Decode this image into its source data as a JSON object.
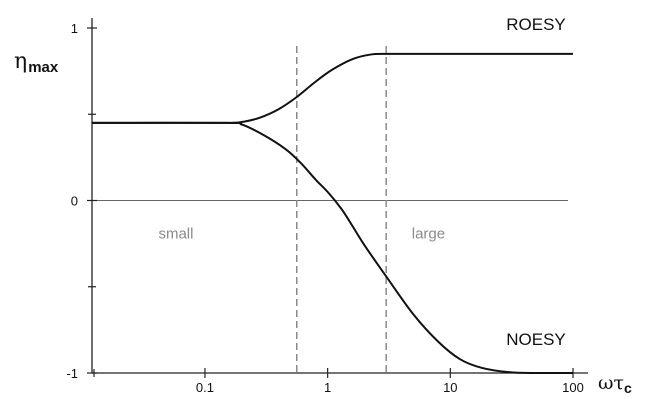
{
  "chart_data": {
    "type": "line",
    "xscale": "log",
    "xlim": [
      0.012,
      100
    ],
    "ylim": [
      -1,
      1
    ],
    "x_ticks": [
      {
        "value": 0.1,
        "label": "0.1"
      },
      {
        "value": 1,
        "label": "1"
      },
      {
        "value": 10,
        "label": "10"
      },
      {
        "value": 100,
        "label": "100"
      }
    ],
    "x_minor_ticks": [
      0.01
    ],
    "y_ticks": [
      {
        "value": 1,
        "label": "1"
      },
      {
        "value": 0,
        "label": "0"
      },
      {
        "value": -1,
        "label": "-1"
      }
    ],
    "y_minor_ticks": [
      0.5,
      -0.5
    ],
    "ylabel": {
      "main": "η",
      "sub": "max"
    },
    "xlabel": {
      "main": "ωτ",
      "sub": "c"
    },
    "series": [
      {
        "name": "ROESY",
        "points": [
          [
            0.012,
            0.45
          ],
          [
            0.05,
            0.45
          ],
          [
            0.15,
            0.45
          ],
          [
            0.2,
            0.455
          ],
          [
            0.28,
            0.48
          ],
          [
            0.4,
            0.53
          ],
          [
            0.56,
            0.6
          ],
          [
            0.8,
            0.69
          ],
          [
            1.1,
            0.76
          ],
          [
            1.6,
            0.82
          ],
          [
            2.2,
            0.845
          ],
          [
            3.0,
            0.85
          ],
          [
            10,
            0.85
          ],
          [
            100,
            0.85
          ]
        ]
      },
      {
        "name": "NOESY",
        "points": [
          [
            0.012,
            0.45
          ],
          [
            0.15,
            0.45
          ],
          [
            0.2,
            0.44
          ],
          [
            0.3,
            0.38
          ],
          [
            0.45,
            0.3
          ],
          [
            0.6,
            0.22
          ],
          [
            0.8,
            0.12
          ],
          [
            1.0,
            0.05
          ],
          [
            1.3,
            -0.05
          ],
          [
            1.6,
            -0.15
          ],
          [
            2.0,
            -0.26
          ],
          [
            3.0,
            -0.44
          ],
          [
            5.0,
            -0.66
          ],
          [
            8.0,
            -0.82
          ],
          [
            12,
            -0.92
          ],
          [
            18,
            -0.97
          ],
          [
            30,
            -0.995
          ],
          [
            50,
            -1.0
          ],
          [
            100,
            -1.0
          ]
        ]
      }
    ],
    "regions": [
      {
        "label": "small",
        "x": 0.07,
        "y": -0.07
      },
      {
        "label": "large",
        "x": 8,
        "y": -0.07
      }
    ],
    "reference_lines": [
      {
        "orientation": "horizontal",
        "y": 0
      },
      {
        "orientation": "vertical",
        "x": 0.56,
        "style": "dashed"
      },
      {
        "orientation": "vertical",
        "x": 3.0,
        "style": "dashed"
      }
    ]
  }
}
